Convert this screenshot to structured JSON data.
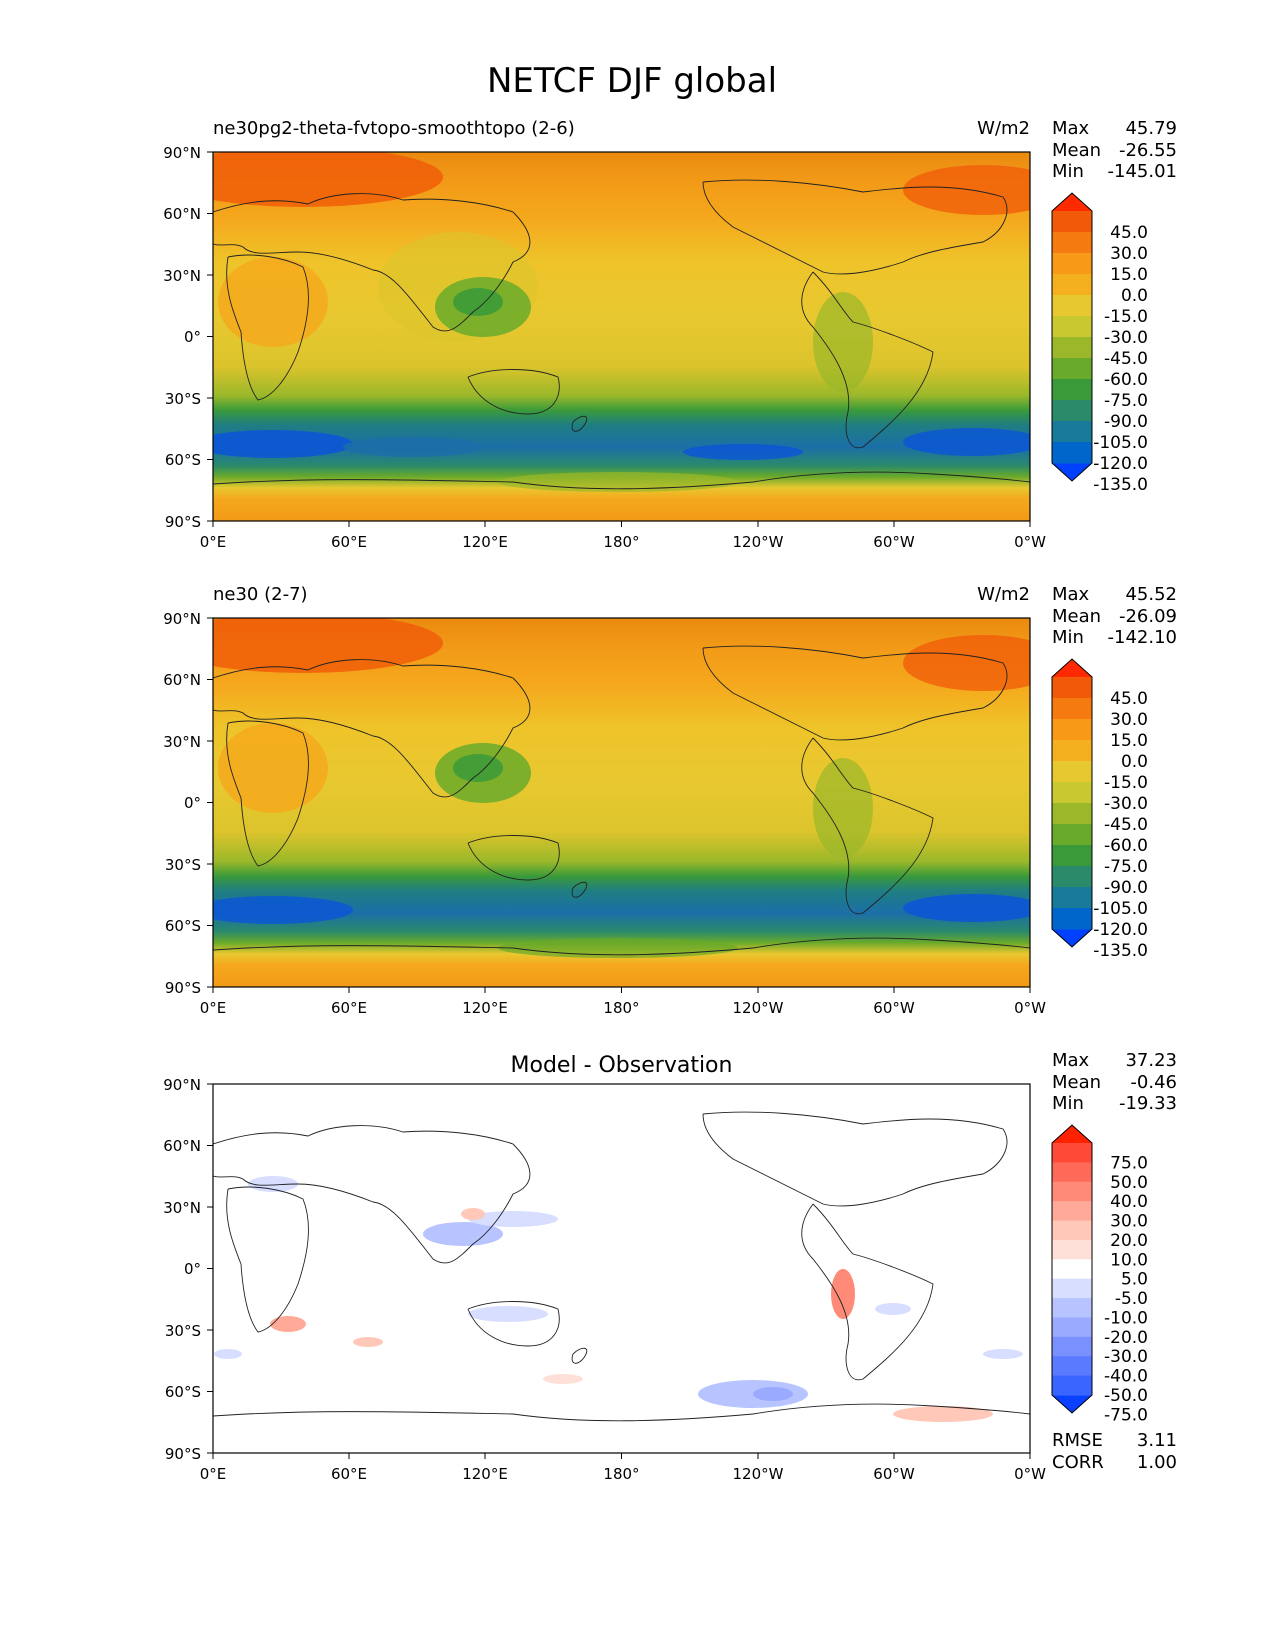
{
  "title": "NETCF DJF global",
  "panels": [
    {
      "title_left": "ne30pg2-theta-fvtopo-smoothtopo (2-6)",
      "title_center": "",
      "units": "W/m2",
      "stats": [
        {
          "label": "Max",
          "value": "45.79"
        },
        {
          "label": "Mean",
          "value": "-26.55"
        },
        {
          "label": "Min",
          "value": "-145.01"
        }
      ],
      "colorbar_ticks": [
        "45.0",
        "30.0",
        "15.0",
        "0.0",
        "-15.0",
        "-30.0",
        "-45.0",
        "-60.0",
        "-75.0",
        "-90.0",
        "-105.0",
        "-120.0",
        "-135.0"
      ]
    },
    {
      "title_left": "ne30 (2-7)",
      "title_center": "",
      "units": "W/m2",
      "stats": [
        {
          "label": "Max",
          "value": "45.52"
        },
        {
          "label": "Mean",
          "value": "-26.09"
        },
        {
          "label": "Min",
          "value": "-142.10"
        }
      ],
      "colorbar_ticks": [
        "45.0",
        "30.0",
        "15.0",
        "0.0",
        "-15.0",
        "-30.0",
        "-45.0",
        "-60.0",
        "-75.0",
        "-90.0",
        "-105.0",
        "-120.0",
        "-135.0"
      ]
    },
    {
      "title_left": "",
      "title_center": "Model - Observation",
      "units": "",
      "stats": [
        {
          "label": "Max",
          "value": "37.23"
        },
        {
          "label": "Mean",
          "value": "-0.46"
        },
        {
          "label": "Min",
          "value": "-19.33"
        }
      ],
      "colorbar_ticks": [
        "75.0",
        "50.0",
        "40.0",
        "30.0",
        "20.0",
        "10.0",
        "5.0",
        "-5.0",
        "-10.0",
        "-20.0",
        "-30.0",
        "-40.0",
        "-50.0",
        "-75.0"
      ],
      "bottom_stats": [
        {
          "label": "RMSE",
          "value": "3.11"
        },
        {
          "label": "CORR",
          "value": "1.00"
        }
      ]
    }
  ],
  "axes": {
    "lat_ticks": [
      "90°N",
      "60°N",
      "30°N",
      "0°",
      "30°S",
      "60°S",
      "90°S"
    ],
    "lon_ticks": [
      "0°E",
      "60°E",
      "120°E",
      "180°",
      "120°W",
      "60°W",
      "0°W"
    ]
  },
  "colors": {
    "netcf_scale": [
      "#0040ff",
      "#0066cc",
      "#1a7a9a",
      "#2a8a6a",
      "#3a9a3a",
      "#6aaa2a",
      "#9ab82a",
      "#c8c830",
      "#e8c830",
      "#f5b020",
      "#f89a18",
      "#f57a10",
      "#f05a08",
      "#ff2a00"
    ],
    "diff_scale": [
      "#0a40ff",
      "#3a66ff",
      "#5a7aff",
      "#7a90ff",
      "#9aaaff",
      "#b8c4ff",
      "#d8deff",
      "#ffffff",
      "#ffe0d8",
      "#ffc8b8",
      "#ffaa98",
      "#ff8a78",
      "#ff6a58",
      "#ff4a38",
      "#ff2200"
    ]
  }
}
